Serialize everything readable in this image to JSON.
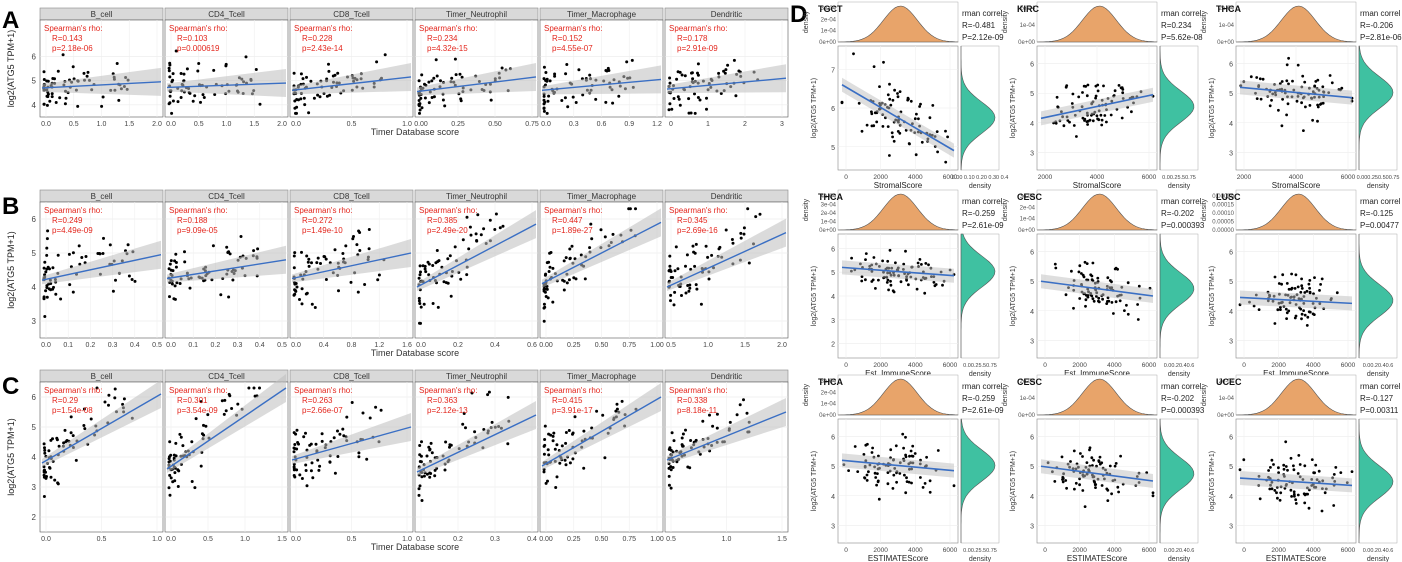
{
  "figure": {
    "panel_letters": [
      "A",
      "B",
      "C",
      "D"
    ],
    "timer_xlabel": "Timer Database score",
    "timer_ylabel": "log2(ATG5 TPM+1)",
    "cell_types": [
      "B_cell",
      "CD4_Tcell",
      "CD8_Tcell",
      "Timer_Neutrophil",
      "Timer_Macrophage",
      "Dendritic"
    ],
    "spearman_label": "Spearman's rho:"
  },
  "colors": {
    "point": "#000000",
    "fit_line": "#3a6fc4",
    "confidence": "#bdbdbd",
    "stat_text": "#e3261d",
    "strip_bg": "#d9d9d9",
    "density_top": "#e8a46a",
    "density_right": "#3fc1a1"
  },
  "chart_data": [
    {
      "panel": "A",
      "type": "scatter",
      "xlabel": "Timer Database score",
      "ylabel": "log2(ATG5 TPM+1)",
      "yticks": [
        "4",
        "5",
        "6"
      ],
      "ylim": [
        3.5,
        7.5
      ],
      "subplots": [
        {
          "title": "B_cell",
          "R": "R=0.143",
          "p": "p=2.18e-06",
          "xticks": [
            "0.0",
            "0.5",
            "1.0",
            "1.5",
            "2.0"
          ],
          "fit": [
            4.7,
            4.95
          ]
        },
        {
          "title": "CD4_Tcell",
          "R": "R=0.103",
          "p": "p=0.000619",
          "xticks": [
            "0.0",
            "0.5",
            "1.0",
            "1.5",
            "2.0"
          ],
          "fit": [
            4.72,
            4.9
          ]
        },
        {
          "title": "CD8_Tcell",
          "R": "R=0.228",
          "p": "p=2.43e-14",
          "xticks": [
            "0.0",
            "0.5",
            "1.0"
          ],
          "fit": [
            4.6,
            5.15
          ]
        },
        {
          "title": "Timer_Neutrophil",
          "R": "R=0.234",
          "p": "p=4.32e-15",
          "xticks": [
            "0.00",
            "0.25",
            "0.50",
            "0.75"
          ],
          "fit": [
            4.55,
            5.15
          ]
        },
        {
          "title": "Timer_Macrophage",
          "R": "R=0.152",
          "p": "p=4.55e-07",
          "xticks": [
            "0.0",
            "0.3",
            "0.6",
            "0.9",
            "1.2"
          ],
          "fit": [
            4.6,
            5.05
          ]
        },
        {
          "title": "Dendritic",
          "R": "R=0.178",
          "p": "p=2.91e-09",
          "xticks": [
            "0",
            "1",
            "2",
            "3"
          ],
          "fit": [
            4.65,
            5.1
          ]
        }
      ]
    },
    {
      "panel": "B",
      "type": "scatter",
      "xlabel": "Timer Database score",
      "ylabel": "log2(ATG5 TPM+1)",
      "yticks": [
        "3",
        "4",
        "5",
        "6"
      ],
      "ylim": [
        2.5,
        6.5
      ],
      "subplots": [
        {
          "title": "B_cell",
          "R": "R=0.249",
          "p": "p=4.49e-09",
          "xticks": [
            "0.0",
            "0.1",
            "0.2",
            "0.3",
            "0.4",
            "0.5"
          ],
          "fit": [
            4.2,
            4.95
          ]
        },
        {
          "title": "CD4_Tcell",
          "R": "R=0.188",
          "p": "p=9.09e-05",
          "xticks": [
            "0.0",
            "0.1",
            "0.2",
            "0.3",
            "0.4",
            "0.5"
          ],
          "fit": [
            4.25,
            4.8
          ]
        },
        {
          "title": "CD8_Tcell",
          "R": "R=0.272",
          "p": "p=1.49e-10",
          "xticks": [
            "0.0",
            "0.4",
            "0.8",
            "1.2",
            "1.6"
          ],
          "fit": [
            4.25,
            5.0
          ]
        },
        {
          "title": "Timer_Neutrophil",
          "R": "R=0.385",
          "p": "p=2.49e-20",
          "xticks": [
            "0.0",
            "0.2",
            "0.4",
            "0.6"
          ],
          "fit": [
            4.0,
            5.85
          ]
        },
        {
          "title": "Timer_Macrophage",
          "R": "R=0.447",
          "p": "p=1.89e-27",
          "xticks": [
            "0.00",
            "0.25",
            "0.50",
            "0.75",
            "1.00"
          ],
          "fit": [
            4.1,
            5.9
          ]
        },
        {
          "title": "Dendritic",
          "R": "R=0.345",
          "p": "p=2.69e-16",
          "xticks": [
            "0.5",
            "1.0",
            "1.5",
            "2.0"
          ],
          "fit": [
            4.0,
            5.6
          ]
        }
      ]
    },
    {
      "panel": "C",
      "type": "scatter",
      "xlabel": "Timer Database score",
      "ylabel": "log2(ATG5 TPM+1)",
      "yticks": [
        "2",
        "3",
        "4",
        "5",
        "6"
      ],
      "ylim": [
        1.5,
        6.5
      ],
      "subplots": [
        {
          "title": "B_cell",
          "R": "R=0.29",
          "p": "p=1.54e-08",
          "xticks": [
            "0.0",
            "0.5",
            "1.0"
          ],
          "fit": [
            3.8,
            6.1
          ]
        },
        {
          "title": "CD4_Tcell",
          "R": "R=0.301",
          "p": "p=3.54e-09",
          "xticks": [
            "0.0",
            "0.5",
            "1.0",
            "1.5"
          ],
          "fit": [
            3.6,
            6.3
          ]
        },
        {
          "title": "CD8_Tcell",
          "R": "R=0.263",
          "p": "p=2.66e-07",
          "xticks": [
            "0.0",
            "0.5",
            "1.0"
          ],
          "fit": [
            3.9,
            5.0
          ]
        },
        {
          "title": "Timer_Neutrophil",
          "R": "R=0.363",
          "p": "p=2.12e-13",
          "xticks": [
            "0.1",
            "0.2",
            "0.3",
            "0.4"
          ],
          "fit": [
            3.5,
            5.4
          ]
        },
        {
          "title": "Timer_Macrophage",
          "R": "R=0.415",
          "p": "p=3.91e-17",
          "xticks": [
            "0.00",
            "0.25",
            "0.50",
            "0.75",
            "1.00"
          ],
          "fit": [
            3.7,
            6.0
          ]
        },
        {
          "title": "Dendritic",
          "R": "R=0.338",
          "p": "p=8.18e-11",
          "xticks": [
            "0.5",
            "1.0",
            "1.5"
          ],
          "fit": [
            3.9,
            5.5
          ]
        }
      ]
    },
    {
      "panel": "D",
      "type": "scatter",
      "correlation_label": "rman correl",
      "density_label": "density",
      "subplots": [
        {
          "cancer": "TGCT",
          "R": "R=-0.481",
          "P": "P=2.12e-09",
          "xlabel": "StromalScore",
          "ylabel": "log2(ATG5 TPM+1)",
          "xticks": [
            "0",
            "2000",
            "4000",
            "6000"
          ],
          "yticks": [
            "5",
            "6",
            "7"
          ],
          "top_density_ticks": [
            "3e-04",
            "2e-04",
            "1e-04",
            "0e+00"
          ],
          "right_density_ticks": "0.00 0.10 0.20 0.30 0.4",
          "fit": [
            6.6,
            4.9
          ]
        },
        {
          "cancer": "KIRC",
          "R": "R=0.234",
          "P": "P=5.62e-08",
          "xlabel": "StromalScore",
          "ylabel": "log2(ATG5 TPM+1)",
          "xticks": [
            "2000",
            "4000",
            "6000"
          ],
          "yticks": [
            "3",
            "4",
            "5",
            "6"
          ],
          "top_density_ticks": [
            "2e-04",
            "1e-04",
            "0e+00"
          ],
          "right_density_ticks": "0.00.25.50.75",
          "fit": [
            4.15,
            4.95
          ]
        },
        {
          "cancer": "THCA",
          "R": "R=-0.206",
          "P": "P=2.81e-06",
          "xlabel": "StromalScore",
          "ylabel": "log2(ATG5 TPM+1)",
          "xticks": [
            "2000",
            "4000",
            "6000"
          ],
          "yticks": [
            "3",
            "4",
            "5",
            "6"
          ],
          "top_density_ticks": [
            "2e-04",
            "1e-04",
            "0e+00"
          ],
          "right_density_ticks": "0.000.250.500.75",
          "fit": [
            5.2,
            4.85
          ]
        },
        {
          "cancer": "THCA",
          "R": "R=-0.259",
          "P": "P=2.61e-09",
          "xlabel": "Est_ImmuneScore",
          "ylabel": "log2(ATG5 TPM+1)",
          "xticks": [
            "0",
            "2000",
            "4000",
            "6000"
          ],
          "yticks": [
            "2",
            "3",
            "4",
            "5",
            "6"
          ],
          "top_density_ticks": [
            "4e-04",
            "3e-04",
            "2e-04",
            "1e-04",
            "0e+00"
          ],
          "right_density_ticks": "0.00.25.50.75",
          "fit": [
            5.2,
            4.85
          ]
        },
        {
          "cancer": "CESC",
          "R": "R=-0.202",
          "P": "P=0.000393",
          "xlabel": "Est_ImmuneScore",
          "ylabel": "log2(ATG5 TPM+1)",
          "xticks": [
            "0",
            "2000",
            "4000",
            "6000"
          ],
          "yticks": [
            "3",
            "4",
            "5",
            "6"
          ],
          "top_density_ticks": [
            "3e-04",
            "2e-04",
            "1e-04",
            "0e+00"
          ],
          "right_density_ticks": "0.00.20.40.6",
          "fit": [
            5.0,
            4.5
          ]
        },
        {
          "cancer": "LUSC",
          "R": "R=-0.125",
          "P": "P=0.00477",
          "xlabel": "Est_ImmuneScore",
          "ylabel": "log2(ATG5 TPM+1)",
          "xticks": [
            "0",
            "2000",
            "4000",
            "6000"
          ],
          "yticks": [
            "3",
            "4",
            "5",
            "6"
          ],
          "top_density_ticks": [
            "0.00020",
            "0.00015",
            "0.00010",
            "0.00005",
            "0.00000"
          ],
          "right_density_ticks": "0.00.20.40.6",
          "fit": [
            4.45,
            4.25
          ]
        },
        {
          "cancer": "THCA",
          "R": "R=-0.259",
          "P": "P=2.61e-09",
          "xlabel": "ESTIMATEScore",
          "ylabel": "log2(ATG5 TPM+1)",
          "xticks": [
            "0",
            "2000",
            "4000",
            "6000"
          ],
          "yticks": [
            "3",
            "4",
            "5",
            "6"
          ],
          "top_density_ticks": [
            "3e-04",
            "2e-04",
            "1e-04",
            "0e+00"
          ],
          "right_density_ticks": "0.00.25.50.75",
          "fit": [
            5.2,
            4.85
          ]
        },
        {
          "cancer": "CESC",
          "R": "R=-0.202",
          "P": "P=0.000393",
          "xlabel": "ESTIMATEScore",
          "ylabel": "log2(ATG5 TPM+1)",
          "xticks": [
            "0",
            "2000",
            "4000",
            "6000"
          ],
          "yticks": [
            "3",
            "4",
            "5",
            "6"
          ],
          "top_density_ticks": [
            "2e-04",
            "1e-04",
            "0e+00"
          ],
          "right_density_ticks": "0.00.20.40.6",
          "fit": [
            5.0,
            4.5
          ]
        },
        {
          "cancer": "UCEC",
          "R": "R=-0.127",
          "P": "P=0.00311",
          "xlabel": "ESTIMATEScore",
          "ylabel": "log2(ATG5 TPM+1)",
          "xticks": [
            "0",
            "2000",
            "4000",
            "6000"
          ],
          "yticks": [
            "3",
            "4",
            "5",
            "6"
          ],
          "top_density_ticks": [
            "2e-04",
            "1e-04",
            "0e+00"
          ],
          "right_density_ticks": "0.00.20.40.6",
          "fit": [
            4.6,
            4.35
          ]
        }
      ]
    }
  ]
}
